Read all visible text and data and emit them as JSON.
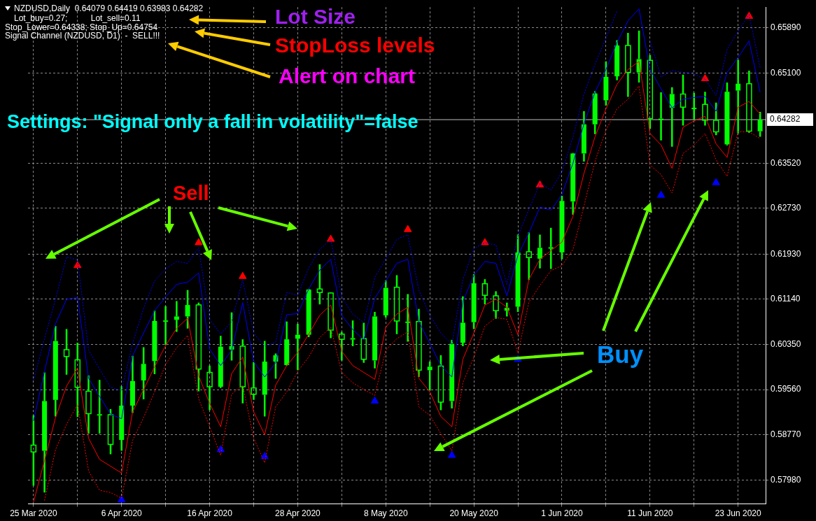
{
  "chart_data": {
    "type": "candlestick",
    "title": "NZDUSD,Daily  0.64079 0.64419 0.63983 0.64282",
    "annotations": [
      "Lot_buy=0.27;          Lot_sell=0.11",
      "Stop_Lower=0.64338; Stop_Up=0.64754",
      "Signal Channel (NZDUSD, D1)  -  SELL!!!",
      "Lot Size",
      "StopLoss levels",
      "Alert on chart",
      "Settings: \"Signal only a fall in volatility\"=false",
      "Sell",
      "Buy"
    ],
    "categories": [
      "25 Mar 2020",
      null,
      null,
      null,
      null,
      null,
      null,
      null,
      "6 Apr 2020",
      null,
      null,
      null,
      null,
      null,
      null,
      null,
      "16 Apr 2020",
      null,
      null,
      null,
      null,
      null,
      null,
      null,
      "28 Apr 2020",
      null,
      null,
      null,
      null,
      null,
      null,
      null,
      "8 May 2020",
      null,
      null,
      null,
      null,
      null,
      null,
      null,
      "20 May 2020",
      null,
      null,
      null,
      null,
      null,
      null,
      null,
      "1 Jun 2020",
      null,
      null,
      null,
      null,
      null,
      null,
      null,
      "11 Jun 2020",
      null,
      null,
      null,
      null,
      null,
      null,
      null,
      "23 Jun 2020",
      null,
      null
    ],
    "color": "#00ff00",
    "ohlc": [
      [
        0.5859,
        0.5911,
        0.5788,
        0.5847
      ],
      [
        0.5849,
        0.5986,
        0.5776,
        0.5936
      ],
      [
        0.5938,
        0.6067,
        0.5909,
        0.6041
      ],
      [
        0.6026,
        0.6062,
        0.5982,
        0.6014
      ],
      [
        0.6008,
        0.6038,
        0.5908,
        0.596
      ],
      [
        0.5953,
        0.5981,
        0.5879,
        0.5914
      ],
      [
        0.5913,
        0.5973,
        0.5879,
        0.5913
      ],
      [
        0.5912,
        0.5922,
        0.5843,
        0.586
      ],
      [
        0.5868,
        0.5962,
        0.5849,
        0.5928
      ],
      [
        0.5928,
        0.6015,
        0.5915,
        0.5971
      ],
      [
        0.5972,
        0.603,
        0.5939,
        0.6001
      ],
      [
        0.6006,
        0.6094,
        0.5983,
        0.6076
      ],
      [
        0.6077,
        0.6102,
        0.6034,
        0.6077
      ],
      [
        0.6078,
        0.6111,
        0.6057,
        0.6084
      ],
      [
        0.6084,
        0.613,
        0.6063,
        0.6104
      ],
      [
        0.6104,
        0.6108,
        0.5953,
        0.5992
      ],
      [
        0.5986,
        0.5998,
        0.592,
        0.5961
      ],
      [
        0.5961,
        0.605,
        0.5959,
        0.6031
      ],
      [
        0.6026,
        0.6091,
        0.6007,
        0.6032
      ],
      [
        0.6032,
        0.6044,
        0.5932,
        0.5961
      ],
      [
        0.5959,
        0.6004,
        0.5938,
        0.5948
      ],
      [
        0.5947,
        0.6041,
        0.5909,
        0.6005
      ],
      [
        0.6005,
        0.6019,
        0.5975,
        0.6016
      ],
      [
        0.5999,
        0.6075,
        0.5998,
        0.6044
      ],
      [
        0.6045,
        0.6071,
        0.599,
        0.6052
      ],
      [
        0.6052,
        0.6132,
        0.6048,
        0.6131
      ],
      [
        0.6132,
        0.6175,
        0.6105,
        0.6126
      ],
      [
        0.6125,
        0.6126,
        0.6046,
        0.606
      ],
      [
        0.6053,
        0.6057,
        0.6007,
        0.6044
      ],
      [
        0.6046,
        0.6077,
        0.6032,
        0.6046
      ],
      [
        0.6045,
        0.6073,
        0.6003,
        0.6009
      ],
      [
        0.6007,
        0.6092,
        0.5993,
        0.6084
      ],
      [
        0.6086,
        0.6147,
        0.6082,
        0.6134
      ],
      [
        0.6135,
        0.6156,
        0.6053,
        0.6076
      ],
      [
        0.6075,
        0.6123,
        0.604,
        0.6075
      ],
      [
        0.6075,
        0.6097,
        0.5978,
        0.599
      ],
      [
        0.599,
        0.6005,
        0.5955,
        0.5996
      ],
      [
        0.5997,
        0.6016,
        0.592,
        0.5934
      ],
      [
        0.5936,
        0.6043,
        0.5923,
        0.6036
      ],
      [
        0.6038,
        0.6119,
        0.6032,
        0.6073
      ],
      [
        0.6074,
        0.6158,
        0.6062,
        0.6142
      ],
      [
        0.6141,
        0.6149,
        0.6105,
        0.6121
      ],
      [
        0.612,
        0.6128,
        0.608,
        0.6094
      ],
      [
        0.6094,
        0.6108,
        0.6084,
        0.6099
      ],
      [
        0.6101,
        0.6227,
        0.6092,
        0.6196
      ],
      [
        0.6197,
        0.6231,
        0.6148,
        0.6187
      ],
      [
        0.6185,
        0.6227,
        0.6168,
        0.6204
      ],
      [
        0.6205,
        0.6239,
        0.6167,
        0.6205
      ],
      [
        0.6196,
        0.6295,
        0.6184,
        0.6286
      ],
      [
        0.6285,
        0.637,
        0.6262,
        0.6369
      ],
      [
        0.6369,
        0.6443,
        0.6355,
        0.642
      ],
      [
        0.642,
        0.6478,
        0.6403,
        0.6474
      ],
      [
        0.6462,
        0.653,
        0.6453,
        0.6503
      ],
      [
        0.6504,
        0.6567,
        0.6497,
        0.6558
      ],
      [
        0.6558,
        0.658,
        0.6468,
        0.6511
      ],
      [
        0.6511,
        0.6584,
        0.6493,
        0.6534
      ],
      [
        0.6532,
        0.6541,
        0.6412,
        0.643
      ],
      [
        0.643,
        0.6476,
        0.6392,
        0.643
      ],
      [
        0.6449,
        0.6485,
        0.6381,
        0.6473
      ],
      [
        0.6473,
        0.6507,
        0.6418,
        0.645
      ],
      [
        0.6449,
        0.6475,
        0.6428,
        0.6449
      ],
      [
        0.6455,
        0.6477,
        0.6418,
        0.6427
      ],
      [
        0.6427,
        0.6458,
        0.6401,
        0.6407
      ],
      [
        0.6385,
        0.6493,
        0.6383,
        0.6477
      ],
      [
        0.6479,
        0.6533,
        0.6404,
        0.6491
      ],
      [
        0.6491,
        0.6514,
        0.6405,
        0.6408
      ],
      [
        0.64079,
        0.64419,
        0.63983,
        0.64282
      ]
    ],
    "series": [
      {
        "type": "line",
        "line_style": "dotted",
        "color": "#0000ff",
        "values": [
          0.5972,
          0.6045,
          0.6114,
          0.6188,
          0.6183,
          0.6025,
          0.5992,
          0.596,
          0.5954,
          0.6037,
          0.6098,
          0.6146,
          0.6167,
          0.618,
          0.6177,
          0.6204,
          0.6079,
          0.6053,
          0.6075,
          0.6148,
          0.6055,
          0.6031,
          0.6039,
          0.6126,
          0.6121,
          0.6169,
          0.6201,
          0.6219,
          0.6118,
          0.6088,
          0.6073,
          0.6152,
          0.6185,
          0.6219,
          0.6227,
          0.613,
          0.6086,
          0.6055,
          0.6035,
          0.6148,
          0.6203,
          0.6213,
          0.6209,
          0.614,
          0.6225,
          0.6271,
          0.6317,
          0.6305,
          0.6337,
          0.6398,
          0.6473,
          0.6525,
          0.6571,
          0.6618,
          null,
          null,
          0.6566,
          0.6503,
          0.6514,
          0.6511,
          0.6508,
          0.6499,
          0.647,
          0.6551,
          0.6583,
          0.6612,
          0.6519
        ]
      },
      {
        "type": "line",
        "line_style": "solid",
        "color": "#0000ff",
        "values": [
          0.5901,
          0.5988,
          0.6071,
          0.6114,
          0.6117,
          0.5976,
          0.5944,
          0.5913,
          0.5905,
          0.6015,
          0.6055,
          0.6094,
          0.6118,
          0.614,
          0.6144,
          0.616,
          0.6027,
          0.5998,
          0.6025,
          0.6108,
          0.6005,
          0.5978,
          0.6003,
          0.6087,
          0.6089,
          0.6132,
          0.6165,
          0.6184,
          0.6086,
          0.6061,
          0.6043,
          0.6116,
          0.6146,
          0.6177,
          0.6184,
          0.6075,
          0.6037,
          0.5998,
          0.5978,
          0.611,
          0.6156,
          0.618,
          0.6177,
          0.612,
          0.6191,
          0.623,
          0.6275,
          0.627,
          0.6297,
          0.6352,
          0.6421,
          0.6476,
          0.6516,
          0.6563,
          0.6601,
          0.6622,
          0.6516,
          0.6482,
          0.6449,
          0.6464,
          0.6467,
          0.6469,
          0.6443,
          0.6511,
          0.6537,
          0.6566,
          0.6476
        ]
      },
      {
        "type": "line",
        "line_style": "solid",
        "color": "#ff0000",
        "values": [
          0.5759,
          0.5832,
          0.5907,
          0.5962,
          0.5994,
          0.5871,
          0.5834,
          0.5822,
          0.581,
          0.5917,
          0.5956,
          0.5996,
          0.6033,
          0.6063,
          0.6081,
          0.598,
          0.5932,
          0.5891,
          0.5984,
          0.6013,
          0.5917,
          0.5877,
          0.5964,
          0.5998,
          0.6021,
          0.6053,
          0.6086,
          0.6104,
          0.6023,
          0.5998,
          0.5986,
          0.5974,
          0.6065,
          0.6088,
          0.61,
          0.5976,
          0.5952,
          0.5909,
          0.5891,
          0.6009,
          0.6055,
          0.6104,
          0.6114,
          0.61,
          0.6052,
          0.6149,
          0.6184,
          0.6199,
          0.6214,
          0.6259,
          0.6334,
          0.6398,
          0.6447,
          0.649,
          0.6516,
          0.653,
          0.6404,
          0.6384,
          0.6343,
          0.6415,
          0.6426,
          0.6434,
          0.6386,
          0.6362,
          0.645,
          0.646,
          0.6438
        ]
      },
      {
        "type": "line",
        "line_style": "dotted",
        "color": "#ff0000",
        "values": [
          null,
          0.5762,
          0.5851,
          0.5895,
          0.593,
          0.5814,
          0.578,
          0.5776,
          0.5766,
          0.5867,
          0.5907,
          0.5952,
          0.6,
          0.6029,
          0.6051,
          0.594,
          0.5891,
          0.5841,
          0.5948,
          0.5964,
          0.5871,
          0.5828,
          0.5926,
          0.5952,
          0.5988,
          0.6013,
          0.6047,
          0.6065,
          0.5986,
          0.5968,
          0.5956,
          0.5946,
          0.6025,
          0.6045,
          0.6057,
          0.5926,
          0.5911,
          0.5879,
          0.5849,
          0.5968,
          0.6013,
          0.6067,
          0.6082,
          0.6079,
          0.602,
          0.6109,
          0.6138,
          0.6164,
          0.6173,
          0.6201,
          0.6277,
          0.6355,
          0.641,
          0.6447,
          0.6464,
          0.6487,
          0.6349,
          0.6332,
          0.63,
          0.6369,
          0.6384,
          0.6404,
          0.6358,
          0.6329,
          0.6407,
          0.6407,
          0.6395
        ]
      },
      {
        "type": "scatter",
        "marker": "triangle",
        "color": "#ff0000",
        "values": [
          null,
          null,
          null,
          null,
          0.6173,
          null,
          null,
          null,
          null,
          null,
          null,
          null,
          null,
          null,
          null,
          0.6213,
          null,
          null,
          null,
          0.6154,
          null,
          null,
          null,
          null,
          null,
          null,
          null,
          0.6219,
          null,
          null,
          null,
          null,
          null,
          null,
          0.6236,
          null,
          null,
          null,
          null,
          null,
          null,
          0.6213,
          null,
          null,
          null,
          null,
          0.6314,
          null,
          null,
          null,
          null,
          null,
          null,
          null,
          null,
          null,
          null,
          null,
          null,
          null,
          null,
          0.65,
          null,
          null,
          null,
          0.6609,
          null
        ]
      },
      {
        "type": "scatter",
        "marker": "triangle",
        "color": "#0000ff",
        "values": [
          null,
          null,
          null,
          null,
          null,
          null,
          null,
          null,
          0.5763,
          null,
          null,
          null,
          null,
          null,
          null,
          null,
          null,
          0.5851,
          null,
          null,
          null,
          0.5839,
          null,
          null,
          null,
          null,
          null,
          null,
          null,
          null,
          null,
          0.5936,
          null,
          null,
          null,
          null,
          null,
          null,
          0.5841,
          null,
          null,
          null,
          null,
          null,
          0.6009,
          null,
          null,
          null,
          null,
          null,
          null,
          null,
          null,
          null,
          null,
          null,
          null,
          0.6296,
          null,
          null,
          null,
          null,
          0.6318,
          null,
          null,
          null,
          null
        ]
      }
    ],
    "ylim": [
      0.5756,
      0.6625
    ],
    "yticks": [
      {
        "value": 0.5798,
        "label": "0.57980"
      },
      {
        "value": 0.5877,
        "label": "0.58770"
      },
      {
        "value": 0.5956,
        "label": "0.59560"
      },
      {
        "value": 0.6035,
        "label": "0.60350"
      },
      {
        "value": 0.6114,
        "label": "0.61140"
      },
      {
        "value": 0.6193,
        "label": "0.61930"
      },
      {
        "value": 0.6273,
        "label": "0.62730"
      },
      {
        "value": 0.6352,
        "label": "0.63520"
      },
      {
        "value": 0.651,
        "label": "0.65100"
      },
      {
        "value": 0.6589,
        "label": "0.65890"
      }
    ],
    "ref_lines": [
      {
        "axis": "y",
        "value": 0.64282,
        "label": "0.64282",
        "color": "#c0c0c0"
      }
    ],
    "grid": true,
    "legend": false
  }
}
